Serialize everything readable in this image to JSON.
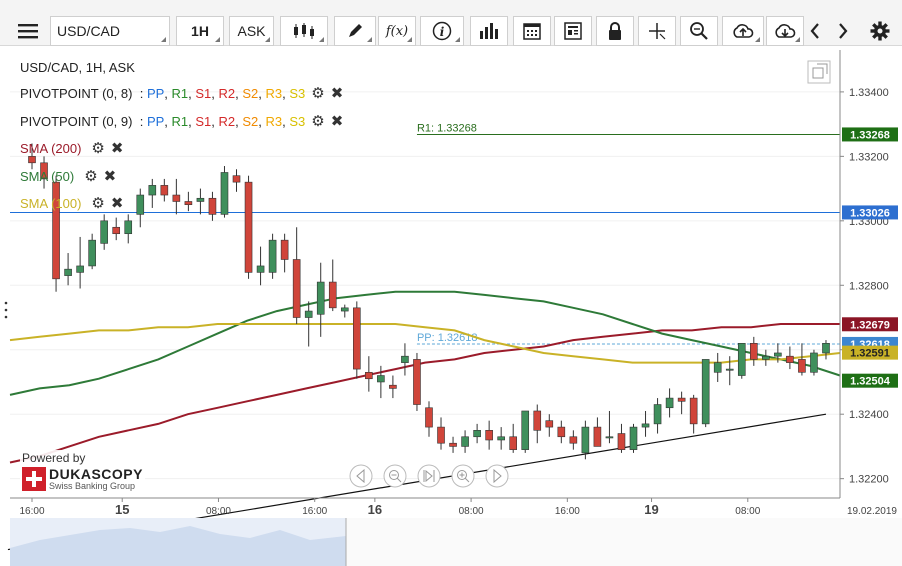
{
  "toolbar": {
    "symbol": "USD/CAD",
    "timeframe": "1H",
    "side": "ASK",
    "icons": [
      "menu-icon",
      "candles-icon",
      "pencil-icon",
      "fx-icon",
      "info-icon",
      "bars-icon",
      "calendar-icon",
      "news-icon",
      "lock-icon",
      "crosshair-icon",
      "zoom-icon",
      "cloud-upload-icon",
      "cloud-download-icon",
      "chevron-left-icon",
      "chevron-right-icon",
      "gear-icon"
    ],
    "fx_label": "f(x)"
  },
  "legend": {
    "title": "USD/CAD, 1H, ASK",
    "pivot1": "PIVOTPOINT (0, 8)",
    "pivot2": "PIVOTPOINT (0, 9)",
    "pivot_sep": ":",
    "pivot_items": [
      "PP",
      "R1",
      "S1",
      "R2",
      "S2",
      "R3",
      "S3"
    ],
    "sma200": "SMA (200)",
    "sma50": "SMA (50)",
    "sma100": "SMA (100)"
  },
  "branding": {
    "powered_by": "Powered by",
    "name": "DUKASCOPY",
    "tagline": "Swiss Banking Group"
  },
  "chart_data": {
    "type": "candlestick",
    "instrument": "USD/CAD",
    "ylim": [
      1.3214,
      1.3353
    ],
    "y_ticks": [
      "1.32200",
      "1.32400",
      "1.32600",
      "1.32800",
      "1.33000",
      "1.33200",
      "1.33400"
    ],
    "x_ticks": [
      {
        "label": "16:00",
        "bold": false,
        "i": 0
      },
      {
        "label": "15",
        "bold": true,
        "i": 7.5
      },
      {
        "label": "08:00",
        "bold": false,
        "i": 15.5
      },
      {
        "label": "16:00",
        "bold": false,
        "i": 23.5
      },
      {
        "label": "16",
        "bold": true,
        "i": 28.5
      },
      {
        "label": "08:00",
        "bold": false,
        "i": 36.5
      },
      {
        "label": "16:00",
        "bold": false,
        "i": 44.5
      },
      {
        "label": "19",
        "bold": true,
        "i": 51.5
      },
      {
        "label": "08:00",
        "bold": false,
        "i": 59.5
      }
    ],
    "date_label": "19.02.2019",
    "candles": [
      [
        1.332,
        1.3324,
        1.3316,
        1.3318
      ],
      [
        1.3318,
        1.332,
        1.331,
        1.3313
      ],
      [
        1.3312,
        1.3314,
        1.3278,
        1.3282
      ],
      [
        1.3283,
        1.329,
        1.328,
        1.3285
      ],
      [
        1.3284,
        1.3295,
        1.3279,
        1.3286
      ],
      [
        1.3286,
        1.3296,
        1.3285,
        1.3294
      ],
      [
        1.3293,
        1.3302,
        1.3291,
        1.33
      ],
      [
        1.3298,
        1.3301,
        1.3294,
        1.3296
      ],
      [
        1.3296,
        1.3302,
        1.3293,
        1.33
      ],
      [
        1.3302,
        1.331,
        1.3298,
        1.3308
      ],
      [
        1.3308,
        1.3313,
        1.3304,
        1.3311
      ],
      [
        1.3311,
        1.3313,
        1.3306,
        1.3308
      ],
      [
        1.3308,
        1.3313,
        1.3302,
        1.3306
      ],
      [
        1.3306,
        1.3309,
        1.3303,
        1.3305
      ],
      [
        1.3306,
        1.331,
        1.3302,
        1.3307
      ],
      [
        1.3307,
        1.3309,
        1.33,
        1.3302
      ],
      [
        1.3302,
        1.3317,
        1.3301,
        1.3315
      ],
      [
        1.3314,
        1.3316,
        1.3309,
        1.3312
      ],
      [
        1.3312,
        1.3314,
        1.3282,
        1.3284
      ],
      [
        1.3284,
        1.3292,
        1.328,
        1.3286
      ],
      [
        1.3284,
        1.3296,
        1.3282,
        1.3294
      ],
      [
        1.3294,
        1.3296,
        1.3284,
        1.3288
      ],
      [
        1.3288,
        1.3298,
        1.3268,
        1.327
      ],
      [
        1.327,
        1.3275,
        1.3261,
        1.3272
      ],
      [
        1.3271,
        1.3287,
        1.3264,
        1.3281
      ],
      [
        1.3281,
        1.3288,
        1.3272,
        1.3273
      ],
      [
        1.3272,
        1.3274,
        1.327,
        1.3273
      ],
      [
        1.3273,
        1.3275,
        1.3251,
        1.3254
      ],
      [
        1.3253,
        1.3258,
        1.3247,
        1.3251
      ],
      [
        1.325,
        1.3255,
        1.3245,
        1.3252
      ],
      [
        1.3249,
        1.3252,
        1.3245,
        1.3248
      ],
      [
        1.3256,
        1.3262,
        1.3252,
        1.3258
      ],
      [
        1.3257,
        1.3259,
        1.3241,
        1.3243
      ],
      [
        1.3242,
        1.3244,
        1.3233,
        1.3236
      ],
      [
        1.3236,
        1.3239,
        1.3229,
        1.3231
      ],
      [
        1.3231,
        1.3233,
        1.3228,
        1.323
      ],
      [
        1.323,
        1.3235,
        1.3228,
        1.3233
      ],
      [
        1.3233,
        1.3237,
        1.3231,
        1.3235
      ],
      [
        1.3235,
        1.3238,
        1.3229,
        1.3232
      ],
      [
        1.3232,
        1.3236,
        1.3229,
        1.3233
      ],
      [
        1.3233,
        1.3237,
        1.3228,
        1.3229
      ],
      [
        1.3229,
        1.3241,
        1.3228,
        1.3241
      ],
      [
        1.3241,
        1.3243,
        1.3231,
        1.3235
      ],
      [
        1.3238,
        1.324,
        1.3233,
        1.3236
      ],
      [
        1.3236,
        1.3238,
        1.3231,
        1.3233
      ],
      [
        1.3233,
        1.3235,
        1.3229,
        1.3231
      ],
      [
        1.3228,
        1.3238,
        1.3226,
        1.3236
      ],
      [
        1.3236,
        1.3239,
        1.323,
        1.323
      ],
      [
        1.3233,
        1.3241,
        1.3231,
        1.3233
      ],
      [
        1.3234,
        1.3237,
        1.3228,
        1.3229
      ],
      [
        1.3229,
        1.3237,
        1.3228,
        1.3236
      ],
      [
        1.3236,
        1.3241,
        1.3233,
        1.3237
      ],
      [
        1.3237,
        1.3245,
        1.3234,
        1.3243
      ],
      [
        1.3242,
        1.3248,
        1.3239,
        1.3245
      ],
      [
        1.3245,
        1.3247,
        1.324,
        1.3244
      ],
      [
        1.3245,
        1.3246,
        1.3234,
        1.3237
      ],
      [
        1.3237,
        1.3257,
        1.3236,
        1.3257
      ],
      [
        1.3253,
        1.3259,
        1.325,
        1.3256
      ],
      [
        1.3254,
        1.3258,
        1.3249,
        1.3254
      ],
      [
        1.3252,
        1.3262,
        1.3251,
        1.3262
      ],
      [
        1.3262,
        1.3264,
        1.3255,
        1.3257
      ],
      [
        1.3257,
        1.326,
        1.3255,
        1.3258
      ],
      [
        1.3258,
        1.3262,
        1.3256,
        1.3259
      ],
      [
        1.3258,
        1.3261,
        1.3254,
        1.3256
      ],
      [
        1.3257,
        1.3262,
        1.3252,
        1.3253
      ],
      [
        1.3253,
        1.326,
        1.3252,
        1.3259
      ],
      [
        1.3259,
        1.3263,
        1.3257,
        1.3262
      ]
    ],
    "series": [
      {
        "name": "SMA (200)",
        "color": "#9b1b2a",
        "values": [
          1.3225,
          1.3227,
          1.323,
          1.3233,
          1.3235,
          1.3237,
          1.324,
          1.3242,
          1.3244,
          1.3246,
          1.3248,
          1.325,
          1.3252,
          1.3254,
          1.3256,
          1.3257,
          1.3259,
          1.326,
          1.3261,
          1.3263,
          1.3264,
          1.3265,
          1.3266,
          1.3266,
          1.3267,
          1.3267,
          1.3268,
          1.3268,
          1.3268
        ]
      },
      {
        "name": "SMA (50)",
        "color": "#2e7a38",
        "values": [
          1.3246,
          1.3248,
          1.3249,
          1.3251,
          1.3254,
          1.3257,
          1.3261,
          1.3265,
          1.3269,
          1.3272,
          1.3274,
          1.3276,
          1.3277,
          1.3278,
          1.3278,
          1.3278,
          1.3277,
          1.3276,
          1.3275,
          1.3273,
          1.3271,
          1.3268,
          1.3265,
          1.3263,
          1.3261,
          1.3259,
          1.3257,
          1.3255,
          1.3252
        ]
      },
      {
        "name": "SMA (100)",
        "color": "#c9b227",
        "values": [
          1.3263,
          1.3264,
          1.3265,
          1.3266,
          1.3266,
          1.3267,
          1.3267,
          1.3268,
          1.3268,
          1.3268,
          1.3268,
          1.3268,
          1.3268,
          1.3268,
          1.3267,
          1.3266,
          1.3263,
          1.3261,
          1.3259,
          1.3258,
          1.3257,
          1.3256,
          1.3256,
          1.3256,
          1.3256,
          1.3257,
          1.3257,
          1.3258,
          1.3259
        ]
      }
    ],
    "levels": [
      {
        "label": "R1: 1.33268",
        "value": 1.33268,
        "color": "#2a6e1e",
        "badge": "1.33268",
        "badge_bg": "#1e6f15"
      },
      {
        "label": "",
        "value": 1.33026,
        "color": "#1e6fd9",
        "badge": "1.33026",
        "badge_bg": "#2d6fd0"
      },
      {
        "label": "PP: 1.32618",
        "value": 1.32618,
        "color": "#5fa8d8",
        "badge": "1.32618",
        "badge_bg": "#3c86d0"
      }
    ],
    "badges": [
      {
        "value": 1.32679,
        "text": "1.32679",
        "bg": "#8b1525"
      },
      {
        "value": 1.32591,
        "text": "1.32591",
        "bg": "#c9b227"
      },
      {
        "value": 1.32504,
        "text": "1.32504",
        "bg": "#1e6f15"
      }
    ],
    "trendline": {
      "from": [
        -2,
        1.3198
      ],
      "to": [
        66,
        1.324
      ]
    },
    "colors": {
      "bull": "#3f8f5c",
      "bear": "#d0453a"
    }
  }
}
